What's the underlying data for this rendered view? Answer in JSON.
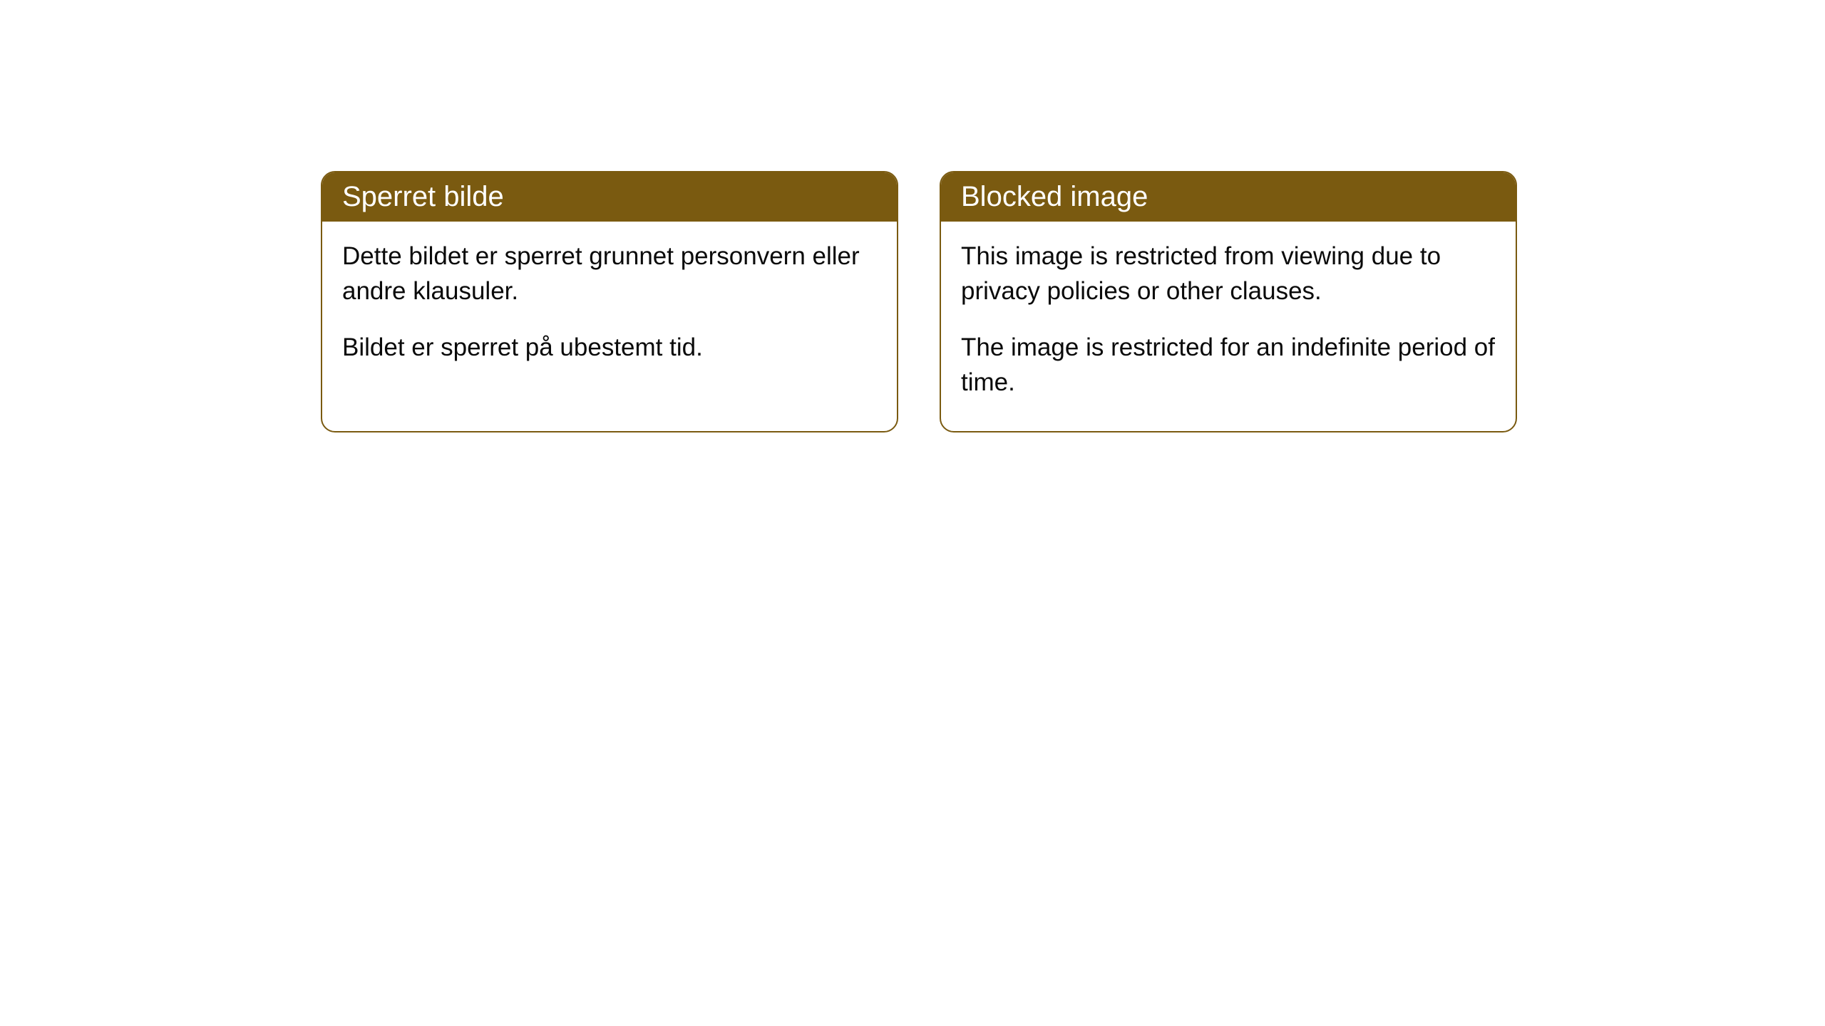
{
  "cards": [
    {
      "title": "Sperret bilde",
      "paragraph1": "Dette bildet er sperret grunnet personvern eller andre klausuler.",
      "paragraph2": "Bildet er sperret på ubestemt tid."
    },
    {
      "title": "Blocked image",
      "paragraph1": "This image is restricted from viewing due to privacy policies or other clauses.",
      "paragraph2": "The image is restricted for an indefinite period of time."
    }
  ],
  "styling": {
    "header_background": "#7a5a10",
    "header_text_color": "#ffffff",
    "card_border_color": "#7a5a10",
    "card_background": "#ffffff",
    "body_text_color": "#0a0a0a",
    "page_background": "#ffffff",
    "border_radius": 20,
    "header_fontsize": 40,
    "body_fontsize": 35
  }
}
